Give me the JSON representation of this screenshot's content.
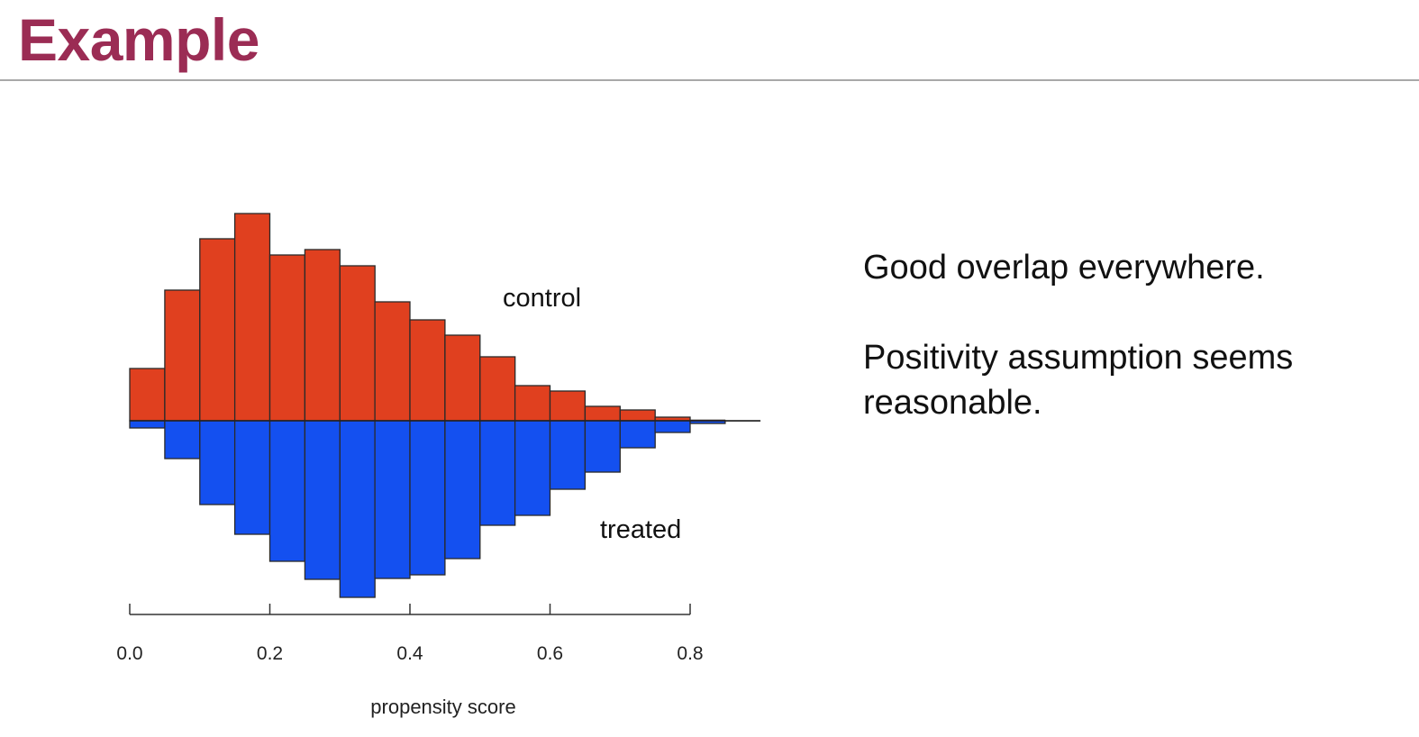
{
  "slide": {
    "title": "Example",
    "title_color": "#9b2c54",
    "notes": [
      "Good overlap everywhere.",
      "Positivity assumption seems reasonable."
    ]
  },
  "chart_data": {
    "type": "bar",
    "subtype": "mirrored-histogram",
    "xlabel": "propensity score",
    "xlim": [
      0,
      0.9
    ],
    "x_ticks": [
      0.0,
      0.2,
      0.4,
      0.6,
      0.8
    ],
    "x_tick_labels": [
      "0.0",
      "0.2",
      "0.4",
      "0.6",
      "0.8"
    ],
    "bin_width": 0.05,
    "bin_starts": [
      0.0,
      0.05,
      0.1,
      0.15,
      0.2,
      0.25,
      0.3,
      0.35,
      0.4,
      0.45,
      0.5,
      0.55,
      0.6,
      0.65,
      0.7,
      0.75,
      0.8,
      0.85
    ],
    "series": [
      {
        "name": "control",
        "direction": "up",
        "color": "#e0401f",
        "values": [
          58,
          145,
          202,
          230,
          184,
          190,
          172,
          132,
          112,
          95,
          71,
          39,
          33,
          16,
          12,
          4,
          1,
          0.3
        ]
      },
      {
        "name": "treated",
        "direction": "down",
        "color": "#1450f0",
        "values": [
          8,
          42,
          93,
          126,
          156,
          176,
          196,
          175,
          171,
          153,
          116,
          105,
          76,
          57,
          30,
          13,
          3,
          0.3
        ]
      }
    ],
    "y_axis_shown": false,
    "grid": false
  }
}
